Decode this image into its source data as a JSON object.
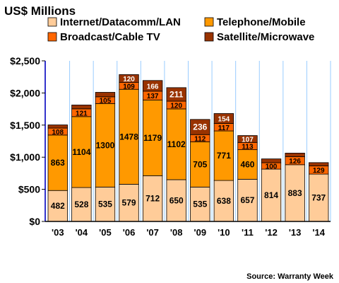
{
  "chart_data": {
    "type": "bar",
    "stacked": true,
    "title": "US$ Millions",
    "source": "Source: Warranty Week",
    "categories": [
      "'03",
      "'04",
      "'05",
      "'06",
      "'07",
      "'08",
      "'09",
      "'10",
      "'11",
      "'12",
      "'13",
      "'14"
    ],
    "ylim": [
      0,
      2500
    ],
    "yticks": [
      {
        "value": 0,
        "label": "$0"
      },
      {
        "value": 500,
        "label": "$500"
      },
      {
        "value": 1000,
        "label": "$1,000"
      },
      {
        "value": 1500,
        "label": "$1,500"
      },
      {
        "value": 2000,
        "label": "$2,000"
      },
      {
        "value": 2500,
        "label": "$2,500"
      }
    ],
    "grid": "vertical",
    "legend_position": "top",
    "series": [
      {
        "name": "Internet/Datacomm/LAN",
        "color": "#FFCC99",
        "label_color": "#000000",
        "values": [
          482,
          528,
          535,
          579,
          712,
          650,
          535,
          638,
          657,
          814,
          883,
          737
        ],
        "labels": [
          "482",
          "528",
          "535",
          "579",
          "712",
          "650",
          "535",
          "638",
          "657",
          "814",
          "883",
          "737"
        ]
      },
      {
        "name": "Telephone/Mobile",
        "color": "#FF9900",
        "label_color": "#000000",
        "values": [
          863,
          1104,
          1300,
          1478,
          1179,
          1102,
          705,
          771,
          460,
          0,
          0,
          0
        ],
        "labels": [
          "863",
          "1104",
          "1300",
          "1478",
          "1179",
          "1102",
          "705",
          "771",
          "460",
          "",
          "",
          ""
        ]
      },
      {
        "name": "Broadcast/Cable TV",
        "color": "#FF6600",
        "label_color": "#000000",
        "values": [
          108,
          121,
          105,
          109,
          137,
          120,
          112,
          117,
          113,
          100,
          126,
          129
        ],
        "labels": [
          "108",
          "121",
          "105",
          "109",
          "137",
          "120",
          "112",
          "117",
          "113",
          "100",
          "126",
          "129"
        ]
      },
      {
        "name": "Satellite/Microwave",
        "color": "#993300",
        "label_color": "#ffffff",
        "values": [
          50,
          60,
          70,
          120,
          166,
          211,
          236,
          154,
          107,
          60,
          55,
          50
        ],
        "labels": [
          "",
          "",
          "",
          "120",
          "166",
          "211",
          "236",
          "154",
          "107",
          "",
          "",
          ""
        ]
      }
    ],
    "colors": {
      "plot_background": "#ffffff",
      "gridline": "#99CCFF",
      "axis": "#000000",
      "bar_outline": "#000000",
      "left_edge": "#3333CC"
    }
  }
}
